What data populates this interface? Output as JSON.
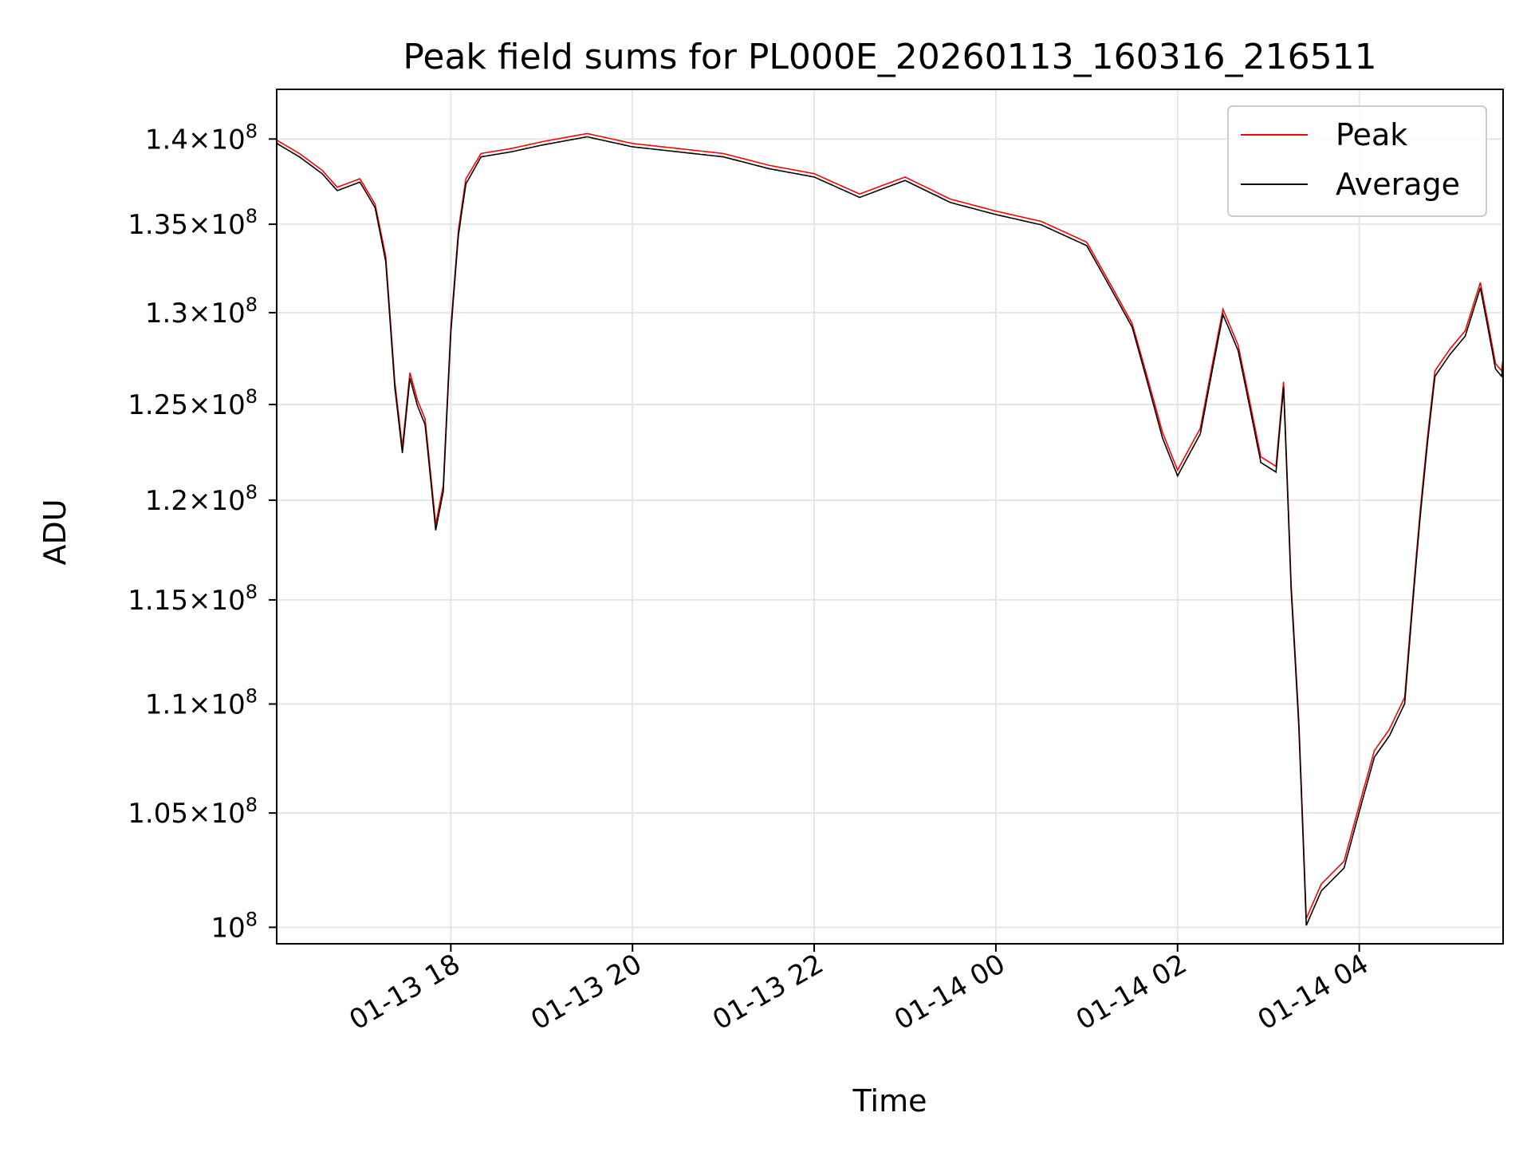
{
  "chart_data": {
    "type": "line",
    "title": "Peak field sums for PL000E_20260113_160316_216511",
    "xlabel": "Time",
    "ylabel": "ADU",
    "yscale": "log",
    "ylim": [
      99300000,
      143000000
    ],
    "xlim": [
      "2026-01-13 16:05",
      "2026-01-14 05:35"
    ],
    "grid": true,
    "legend_position": "top-right",
    "x_ticks": [
      {
        "value": "2026-01-13 18:00",
        "label": "01-13 18"
      },
      {
        "value": "2026-01-13 20:00",
        "label": "01-13 20"
      },
      {
        "value": "2026-01-13 22:00",
        "label": "01-13 22"
      },
      {
        "value": "2026-01-14 00:00",
        "label": "01-14 00"
      },
      {
        "value": "2026-01-14 02:00",
        "label": "01-14 02"
      },
      {
        "value": "2026-01-14 04:00",
        "label": "01-14 04"
      }
    ],
    "y_ticks": [
      {
        "value": 100000000,
        "mantissa": "",
        "exp": "8"
      },
      {
        "value": 105000000,
        "mantissa": "1.05",
        "exp": "8"
      },
      {
        "value": 110000000,
        "mantissa": "1.1",
        "exp": "8"
      },
      {
        "value": 115000000,
        "mantissa": "1.15",
        "exp": "8"
      },
      {
        "value": 120000000,
        "mantissa": "1.2",
        "exp": "8"
      },
      {
        "value": 125000000,
        "mantissa": "1.25",
        "exp": "8"
      },
      {
        "value": 130000000,
        "mantissa": "1.3",
        "exp": "8"
      },
      {
        "value": 135000000,
        "mantissa": "1.35",
        "exp": "8"
      },
      {
        "value": 140000000,
        "mantissa": "1.4",
        "exp": "8"
      }
    ],
    "series": [
      {
        "name": "Peak",
        "color": "#ff0000",
        "points": [
          [
            "2026-01-13 16:05",
            140800000
          ],
          [
            "2026-01-13 16:20",
            140000000
          ],
          [
            "2026-01-13 16:35",
            139000000
          ],
          [
            "2026-01-13 16:45",
            138000000
          ],
          [
            "2026-01-13 17:00",
            138500000
          ],
          [
            "2026-01-13 17:10",
            137000000
          ],
          [
            "2026-01-13 17:17",
            134000000
          ],
          [
            "2026-01-13 17:23",
            127000000
          ],
          [
            "2026-01-13 17:28",
            123500000
          ],
          [
            "2026-01-13 17:33",
            127500000
          ],
          [
            "2026-01-13 17:38",
            126000000
          ],
          [
            "2026-01-13 17:43",
            125000000
          ],
          [
            "2026-01-13 17:50",
            119500000
          ],
          [
            "2026-01-13 17:55",
            121500000
          ],
          [
            "2026-01-13 18:00",
            130000000
          ],
          [
            "2026-01-13 18:05",
            135500000
          ],
          [
            "2026-01-13 18:10",
            138500000
          ],
          [
            "2026-01-13 18:20",
            140000000
          ],
          [
            "2026-01-13 18:40",
            140300000
          ],
          [
            "2026-01-13 19:00",
            140700000
          ],
          [
            "2026-01-13 19:30",
            141200000
          ],
          [
            "2026-01-13 20:00",
            140600000
          ],
          [
            "2026-01-13 20:30",
            140300000
          ],
          [
            "2026-01-13 21:00",
            140000000
          ],
          [
            "2026-01-13 21:30",
            139300000
          ],
          [
            "2026-01-13 22:00",
            138800000
          ],
          [
            "2026-01-13 22:30",
            137600000
          ],
          [
            "2026-01-13 23:00",
            138600000
          ],
          [
            "2026-01-13 23:30",
            137300000
          ],
          [
            "2026-01-14 00:00",
            136600000
          ],
          [
            "2026-01-14 00:30",
            136000000
          ],
          [
            "2026-01-14 01:00",
            134800000
          ],
          [
            "2026-01-14 01:30",
            130200000
          ],
          [
            "2026-01-14 01:50",
            124300000
          ],
          [
            "2026-01-14 02:00",
            122300000
          ],
          [
            "2026-01-14 02:15",
            124500000
          ],
          [
            "2026-01-14 02:30",
            131000000
          ],
          [
            "2026-01-14 02:40",
            129000000
          ],
          [
            "2026-01-14 02:55",
            123000000
          ],
          [
            "2026-01-14 03:05",
            122500000
          ],
          [
            "2026-01-14 03:10",
            127000000
          ],
          [
            "2026-01-14 03:15",
            116500000
          ],
          [
            "2026-01-14 03:20",
            110000000
          ],
          [
            "2026-01-14 03:25",
            101000000
          ],
          [
            "2026-01-14 03:35",
            102500000
          ],
          [
            "2026-01-14 03:50",
            103500000
          ],
          [
            "2026-01-14 04:00",
            106000000
          ],
          [
            "2026-01-14 04:10",
            108500000
          ],
          [
            "2026-01-14 04:20",
            109500000
          ],
          [
            "2026-01-14 04:30",
            111000000
          ],
          [
            "2026-01-14 04:40",
            120000000
          ],
          [
            "2026-01-14 04:45",
            124000000
          ],
          [
            "2026-01-14 04:50",
            127600000
          ],
          [
            "2026-01-14 05:00",
            128800000
          ],
          [
            "2026-01-14 05:10",
            129800000
          ],
          [
            "2026-01-14 05:20",
            132500000
          ],
          [
            "2026-01-14 05:30",
            128000000
          ],
          [
            "2026-01-14 05:35",
            127500000
          ]
        ]
      },
      {
        "name": "Average",
        "color": "#000000",
        "points": [
          [
            "2026-01-13 16:05",
            140600000
          ],
          [
            "2026-01-13 16:20",
            139800000
          ],
          [
            "2026-01-13 16:35",
            138800000
          ],
          [
            "2026-01-13 16:45",
            137800000
          ],
          [
            "2026-01-13 17:00",
            138300000
          ],
          [
            "2026-01-13 17:10",
            136800000
          ],
          [
            "2026-01-13 17:17",
            133700000
          ],
          [
            "2026-01-13 17:23",
            126700000
          ],
          [
            "2026-01-13 17:28",
            123200000
          ],
          [
            "2026-01-13 17:33",
            127200000
          ],
          [
            "2026-01-13 17:38",
            125700000
          ],
          [
            "2026-01-13 17:43",
            124700000
          ],
          [
            "2026-01-13 17:50",
            119200000
          ],
          [
            "2026-01-13 17:55",
            121200000
          ],
          [
            "2026-01-13 18:00",
            129700000
          ],
          [
            "2026-01-13 18:05",
            135200000
          ],
          [
            "2026-01-13 18:10",
            138200000
          ],
          [
            "2026-01-13 18:20",
            139800000
          ],
          [
            "2026-01-13 18:40",
            140100000
          ],
          [
            "2026-01-13 19:00",
            140500000
          ],
          [
            "2026-01-13 19:30",
            141000000
          ],
          [
            "2026-01-13 20:00",
            140400000
          ],
          [
            "2026-01-13 20:30",
            140100000
          ],
          [
            "2026-01-13 21:00",
            139800000
          ],
          [
            "2026-01-13 21:30",
            139100000
          ],
          [
            "2026-01-13 22:00",
            138600000
          ],
          [
            "2026-01-13 22:30",
            137400000
          ],
          [
            "2026-01-13 23:00",
            138400000
          ],
          [
            "2026-01-13 23:30",
            137100000
          ],
          [
            "2026-01-14 00:00",
            136400000
          ],
          [
            "2026-01-14 00:30",
            135800000
          ],
          [
            "2026-01-14 01:00",
            134600000
          ],
          [
            "2026-01-14 01:30",
            130000000
          ],
          [
            "2026-01-14 01:50",
            124000000
          ],
          [
            "2026-01-14 02:00",
            122000000
          ],
          [
            "2026-01-14 02:15",
            124200000
          ],
          [
            "2026-01-14 02:30",
            130700000
          ],
          [
            "2026-01-14 02:40",
            128700000
          ],
          [
            "2026-01-14 02:55",
            122700000
          ],
          [
            "2026-01-14 03:05",
            122200000
          ],
          [
            "2026-01-14 03:10",
            126700000
          ],
          [
            "2026-01-14 03:15",
            116200000
          ],
          [
            "2026-01-14 03:20",
            109700000
          ],
          [
            "2026-01-14 03:25",
            100700000
          ],
          [
            "2026-01-14 03:35",
            102200000
          ],
          [
            "2026-01-14 03:50",
            103200000
          ],
          [
            "2026-01-14 04:00",
            105700000
          ],
          [
            "2026-01-14 04:10",
            108200000
          ],
          [
            "2026-01-14 04:20",
            109200000
          ],
          [
            "2026-01-14 04:30",
            110700000
          ],
          [
            "2026-01-14 04:40",
            119700000
          ],
          [
            "2026-01-14 04:45",
            123700000
          ],
          [
            "2026-01-14 04:50",
            127300000
          ],
          [
            "2026-01-14 05:00",
            128500000
          ],
          [
            "2026-01-14 05:10",
            129500000
          ],
          [
            "2026-01-14 05:20",
            132200000
          ],
          [
            "2026-01-14 05:30",
            127700000
          ],
          [
            "2026-01-14 05:35",
            127200000
          ]
        ]
      }
    ]
  }
}
